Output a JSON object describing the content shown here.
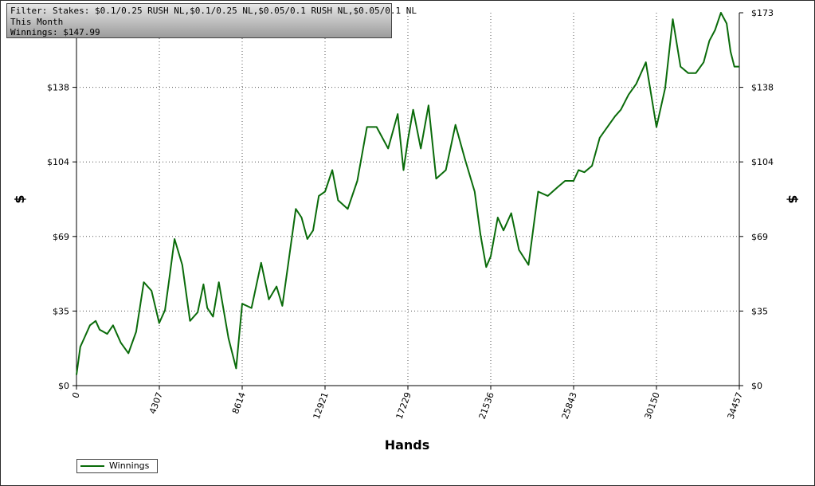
{
  "filter_box": {
    "line1": "Filter: Stakes: $0.1/0.25 RUSH NL,$0.1/0.25 NL,$0.05/0.1 RUSH NL,$0.05/0.1 NL",
    "line2": "This Month",
    "line3": "Winnings: $147.99"
  },
  "colors": {
    "series": "#0a6b0a",
    "grid": "#555555",
    "axis": "#000000"
  },
  "chart_data": {
    "type": "line",
    "title": "",
    "xlabel": "Hands",
    "ylabel": "$",
    "ylabel_right": "$",
    "xlim": [
      0,
      34457
    ],
    "ylim": [
      0,
      173
    ],
    "x_ticks": [
      "0",
      "4307",
      "8614",
      "12921",
      "17229",
      "21536",
      "25843",
      "30150",
      "34457"
    ],
    "y_ticks_left": [
      "$0",
      "$35",
      "$69",
      "$104",
      "$138",
      "$173"
    ],
    "y_ticks_right": [
      "$0",
      "$35",
      "$69",
      "$104",
      "$138",
      "$173"
    ],
    "grid": true,
    "legend_position": "bottom-left",
    "series": [
      {
        "name": "Winnings",
        "x": [
          0,
          200,
          400,
          700,
          1000,
          1200,
          1600,
          1900,
          2300,
          2700,
          3100,
          3500,
          3900,
          4300,
          4600,
          4800,
          5100,
          5500,
          5900,
          6300,
          6600,
          6800,
          7100,
          7400,
          7900,
          8300,
          8614,
          9100,
          9600,
          10000,
          10400,
          10700,
          11000,
          11400,
          11700,
          12000,
          12300,
          12600,
          12921,
          13300,
          13600,
          14100,
          14600,
          15100,
          15600,
          16200,
          16700,
          17000,
          17229,
          17500,
          17900,
          18300,
          18700,
          19200,
          19700,
          20200,
          20700,
          21000,
          21300,
          21536,
          21900,
          22200,
          22600,
          23000,
          23500,
          24000,
          24500,
          25000,
          25400,
          25843,
          26100,
          26400,
          26800,
          27200,
          27600,
          28000,
          28300,
          28700,
          29100,
          29600,
          30150,
          30600,
          31000,
          31400,
          31800,
          32200,
          32600,
          32900,
          33200,
          33500,
          33800,
          34000,
          34200,
          34457
        ],
        "values": [
          5,
          18,
          22,
          28,
          30,
          26,
          24,
          28,
          20,
          15,
          25,
          48,
          44,
          29,
          35,
          48,
          68,
          56,
          30,
          34,
          47,
          36,
          32,
          48,
          22,
          8,
          38,
          36,
          57,
          40,
          46,
          37,
          56,
          82,
          78,
          68,
          72,
          88,
          90,
          100,
          86,
          82,
          95,
          120,
          120,
          110,
          126,
          100,
          114,
          128,
          110,
          130,
          96,
          100,
          121,
          105,
          90,
          70,
          55,
          60,
          78,
          72,
          80,
          63,
          56,
          90,
          88,
          92,
          95,
          95,
          100,
          99,
          102,
          115,
          120,
          125,
          128,
          135,
          140,
          150,
          120,
          138,
          170,
          148,
          145,
          145,
          150,
          160,
          165,
          173,
          168,
          155,
          148,
          148
        ]
      }
    ]
  },
  "legend": {
    "label": "Winnings"
  }
}
